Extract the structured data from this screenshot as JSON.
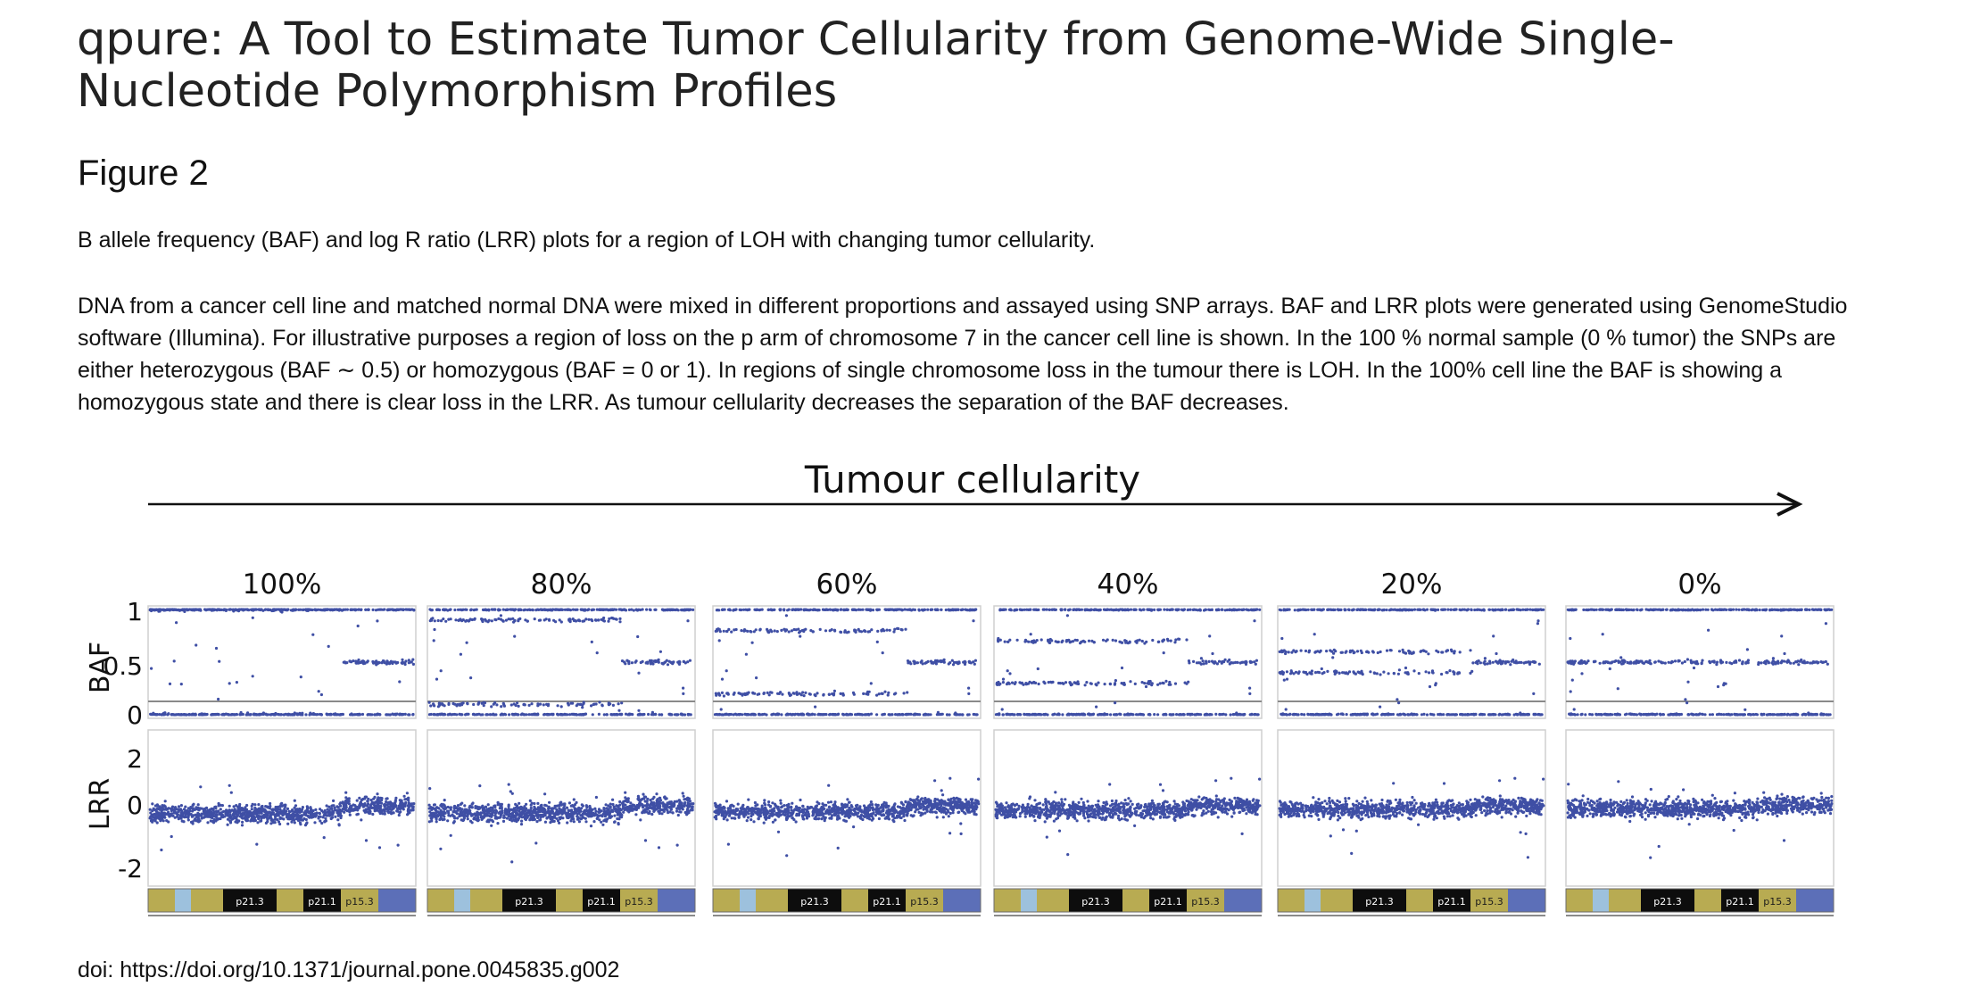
{
  "article": {
    "title": "qpure: A Tool to Estimate Tumor Cellularity from Genome-Wide Single-Nucleotide Polymorphism Profiles"
  },
  "figure": {
    "label": "Figure 2",
    "caption_title": "B allele frequency (BAF) and log R ratio (LRR) plots for a region of LOH with changing tumor cellularity.",
    "caption_body": "DNA from a cancer cell line and matched normal DNA were mixed in different proportions and assayed using SNP arrays. BAF and LRR plots were generated using GenomeStudio software (Illumina). For illustrative purposes a region of loss on the p arm of chromosome 7 in the cancer cell line is shown. In the 100 % normal sample (0 % tumor) the SNPs are either heterozygous (BAF ∼ 0.5) or homozygous (BAF = 0 or 1). In regions of single chromosome loss in the tumour there is LOH. In the 100% cell line the BAF is showing a homozygous state and there is clear loss in the LRR. As tumour cellularity decreases the separation of the BAF decreases.",
    "doi": "doi: https://doi.org/10.1371/journal.pone.0045835.g002"
  },
  "chart_data": {
    "type": "scatter",
    "title": "Tumour cellularity",
    "panels": [
      "100%",
      "80%",
      "60%",
      "40%",
      "20%",
      "0%"
    ],
    "cellularity_percent": [
      100,
      80,
      60,
      40,
      20,
      0
    ],
    "baf": {
      "ylabel": "BAF",
      "yticks": [
        "1",
        "0.5",
        "0"
      ],
      "ylim": [
        0,
        1
      ],
      "loh_region_upper_band": [
        1.0,
        0.9,
        0.8,
        0.7,
        0.6,
        0.5
      ],
      "loh_region_lower_band": [
        0.0,
        0.1,
        0.2,
        0.3,
        0.4,
        0.5
      ],
      "heterozygous_band": 0.5
    },
    "lrr": {
      "ylabel": "LRR",
      "yticks": [
        "2",
        "0",
        "-2"
      ],
      "ylim": [
        -2.5,
        2.5
      ],
      "loh_region_level": [
        -0.1,
        -0.08,
        -0.05,
        -0.03,
        -0.01,
        0.0
      ],
      "normal_region_level": 0.05
    },
    "ideogram_bands": [
      "p21.3",
      "p21.1",
      "p15.3"
    ],
    "colors": {
      "points": "#3f4fa5",
      "band_olive": "#b8ab52",
      "band_black": "#0d0d0d",
      "band_light": "#9dc1dd",
      "band_blue": "#5c6fb8"
    }
  }
}
